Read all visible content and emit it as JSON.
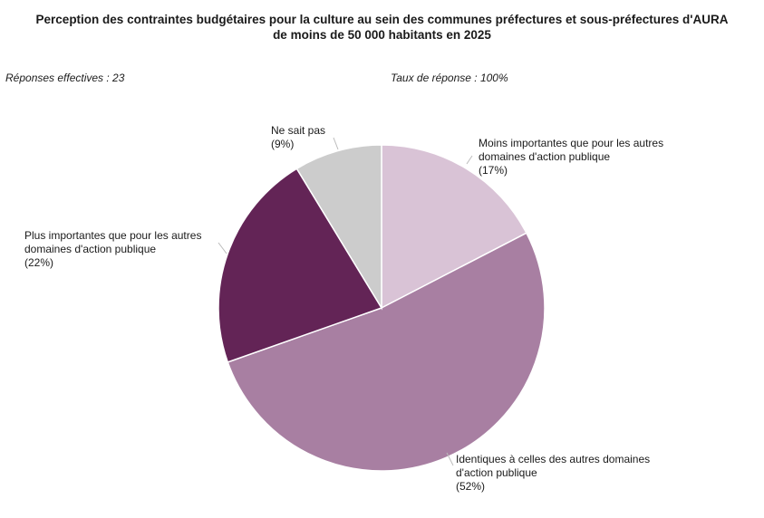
{
  "chart_data": {
    "type": "pie",
    "title_line1": "Perception des contraintes budgétaires pour la culture au sein des communes préfectures et sous-préfectures d'AURA",
    "title_line2": "de moins de 50 000 habitants en 2025",
    "subtitle_left": "Réponses effectives : 23",
    "subtitle_right": "Taux de réponse : 100%",
    "slices": [
      {
        "label_lines": [
          "Moins importantes que pour les autres",
          "domaines d'action publique"
        ],
        "percent_label": "(17%)",
        "value": 17.4,
        "color": "#d9c3d6"
      },
      {
        "label_lines": [
          "Identiques à celles des autres domaines",
          "d'action publique"
        ],
        "percent_label": "(52%)",
        "value": 52.2,
        "color": "#a87fa2"
      },
      {
        "label_lines": [
          "Plus importantes que pour les autres",
          "domaines d'action publique"
        ],
        "percent_label": "(22%)",
        "value": 21.7,
        "color": "#632456"
      },
      {
        "label_lines": [
          "Ne sait pas"
        ],
        "percent_label": "(9%)",
        "value": 8.7,
        "color": "#cccccc"
      }
    ],
    "start_angle": "top",
    "direction": "clockwise",
    "legend": "none"
  }
}
